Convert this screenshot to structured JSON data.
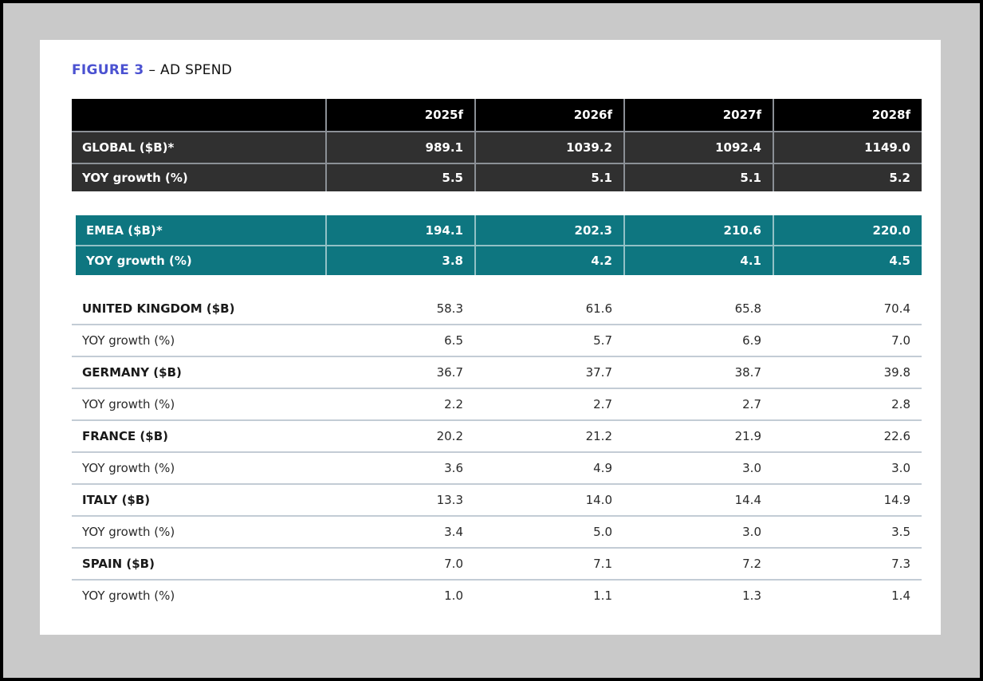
{
  "title": {
    "figure": "FIGURE 3",
    "rest": "– AD SPEND"
  },
  "table": {
    "column_headers": [
      "2025f",
      "2026f",
      "2027f",
      "2028f"
    ],
    "sections": [
      {
        "id": "global",
        "style": "dark",
        "has_header": true,
        "rows": [
          {
            "label": "GLOBAL ($B)*",
            "emphasis": true,
            "values": [
              "989.1",
              "1039.2",
              "1092.4",
              "1149.0"
            ]
          },
          {
            "label": "YOY growth (%)",
            "emphasis": true,
            "values": [
              "5.5",
              "5.1",
              "5.1",
              "5.2"
            ]
          }
        ]
      },
      {
        "id": "emea",
        "style": "teal",
        "has_header": false,
        "rows": [
          {
            "label": "EMEA ($B)*",
            "emphasis": true,
            "values": [
              "194.1",
              "202.3",
              "210.6",
              "220.0"
            ]
          },
          {
            "label": "YOY growth (%)",
            "emphasis": true,
            "values": [
              "3.8",
              "4.2",
              "4.1",
              "4.5"
            ]
          }
        ]
      },
      {
        "id": "countries",
        "style": "plain",
        "has_header": false,
        "rows": [
          {
            "label": "UNITED KINGDOM ($B)",
            "emphasis": true,
            "values": [
              "58.3",
              "61.6",
              "65.8",
              "70.4"
            ]
          },
          {
            "label": "YOY growth (%)",
            "emphasis": false,
            "values": [
              "6.5",
              "5.7",
              "6.9",
              "7.0"
            ]
          },
          {
            "label": "GERMANY ($B)",
            "emphasis": true,
            "values": [
              "36.7",
              "37.7",
              "38.7",
              "39.8"
            ]
          },
          {
            "label": "YOY growth (%)",
            "emphasis": false,
            "values": [
              "2.2",
              "2.7",
              "2.7",
              "2.8"
            ]
          },
          {
            "label": "FRANCE ($B)",
            "emphasis": true,
            "values": [
              "20.2",
              "21.2",
              "21.9",
              "22.6"
            ]
          },
          {
            "label": "YOY growth (%)",
            "emphasis": false,
            "values": [
              "3.6",
              "4.9",
              "3.0",
              "3.0"
            ]
          },
          {
            "label": "ITALY ($B)",
            "emphasis": true,
            "values": [
              "13.3",
              "14.0",
              "14.4",
              "14.9"
            ]
          },
          {
            "label": "YOY growth (%)",
            "emphasis": false,
            "values": [
              "3.4",
              "5.0",
              "3.0",
              "3.5"
            ]
          },
          {
            "label": "SPAIN ($B)",
            "emphasis": true,
            "values": [
              "7.0",
              "7.1",
              "7.2",
              "7.3"
            ]
          },
          {
            "label": "YOY growth (%)",
            "emphasis": false,
            "values": [
              "1.0",
              "1.1",
              "1.3",
              "1.4"
            ]
          }
        ]
      }
    ]
  },
  "colors": {
    "accent_blue": "#4b52d1",
    "teal": "#0e7680",
    "header_black": "#000000",
    "row_dark": "#303030",
    "page_background": "#c9c9c9"
  }
}
